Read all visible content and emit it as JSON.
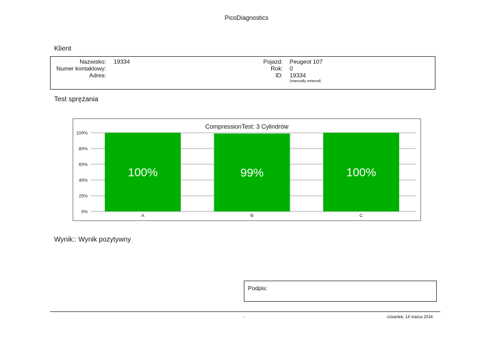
{
  "app_title": "PicoDiagnostics",
  "client": {
    "section_title": "Klient",
    "surname_label": "Nazwisko:",
    "surname_value": "19334",
    "contact_label": "Numer kontaktowy:",
    "contact_value": "",
    "address_label": "Adres:",
    "address_value": "",
    "vehicle_label": "Pojazd:",
    "vehicle_value": "Peugeot 107",
    "year_label": "Rok:",
    "year_value": "0",
    "id_label": "ID:",
    "id_value": "19334",
    "id_note": "(manually entered)"
  },
  "test": {
    "section_title": "Test sprężania"
  },
  "chart_data": {
    "type": "bar",
    "title": "CompressionTest: 3 Cylindrów",
    "categories": [
      "A",
      "B",
      "C"
    ],
    "values": [
      100,
      99,
      100
    ],
    "value_labels": [
      "100%",
      "99%",
      "100%"
    ],
    "ylim": [
      0,
      100
    ],
    "yticks": [
      "0%",
      "20%",
      "40%",
      "60%",
      "80%",
      "100%"
    ],
    "ytick_values": [
      0,
      20,
      40,
      60,
      80,
      100
    ],
    "bar_color": "#00b000",
    "grid": true
  },
  "result": {
    "text": "Wynik:: Wynik pozytywny"
  },
  "signature": {
    "label": "Podpis:"
  },
  "footer": {
    "center": "-",
    "date": "czwartek, 14 marca 2024"
  }
}
